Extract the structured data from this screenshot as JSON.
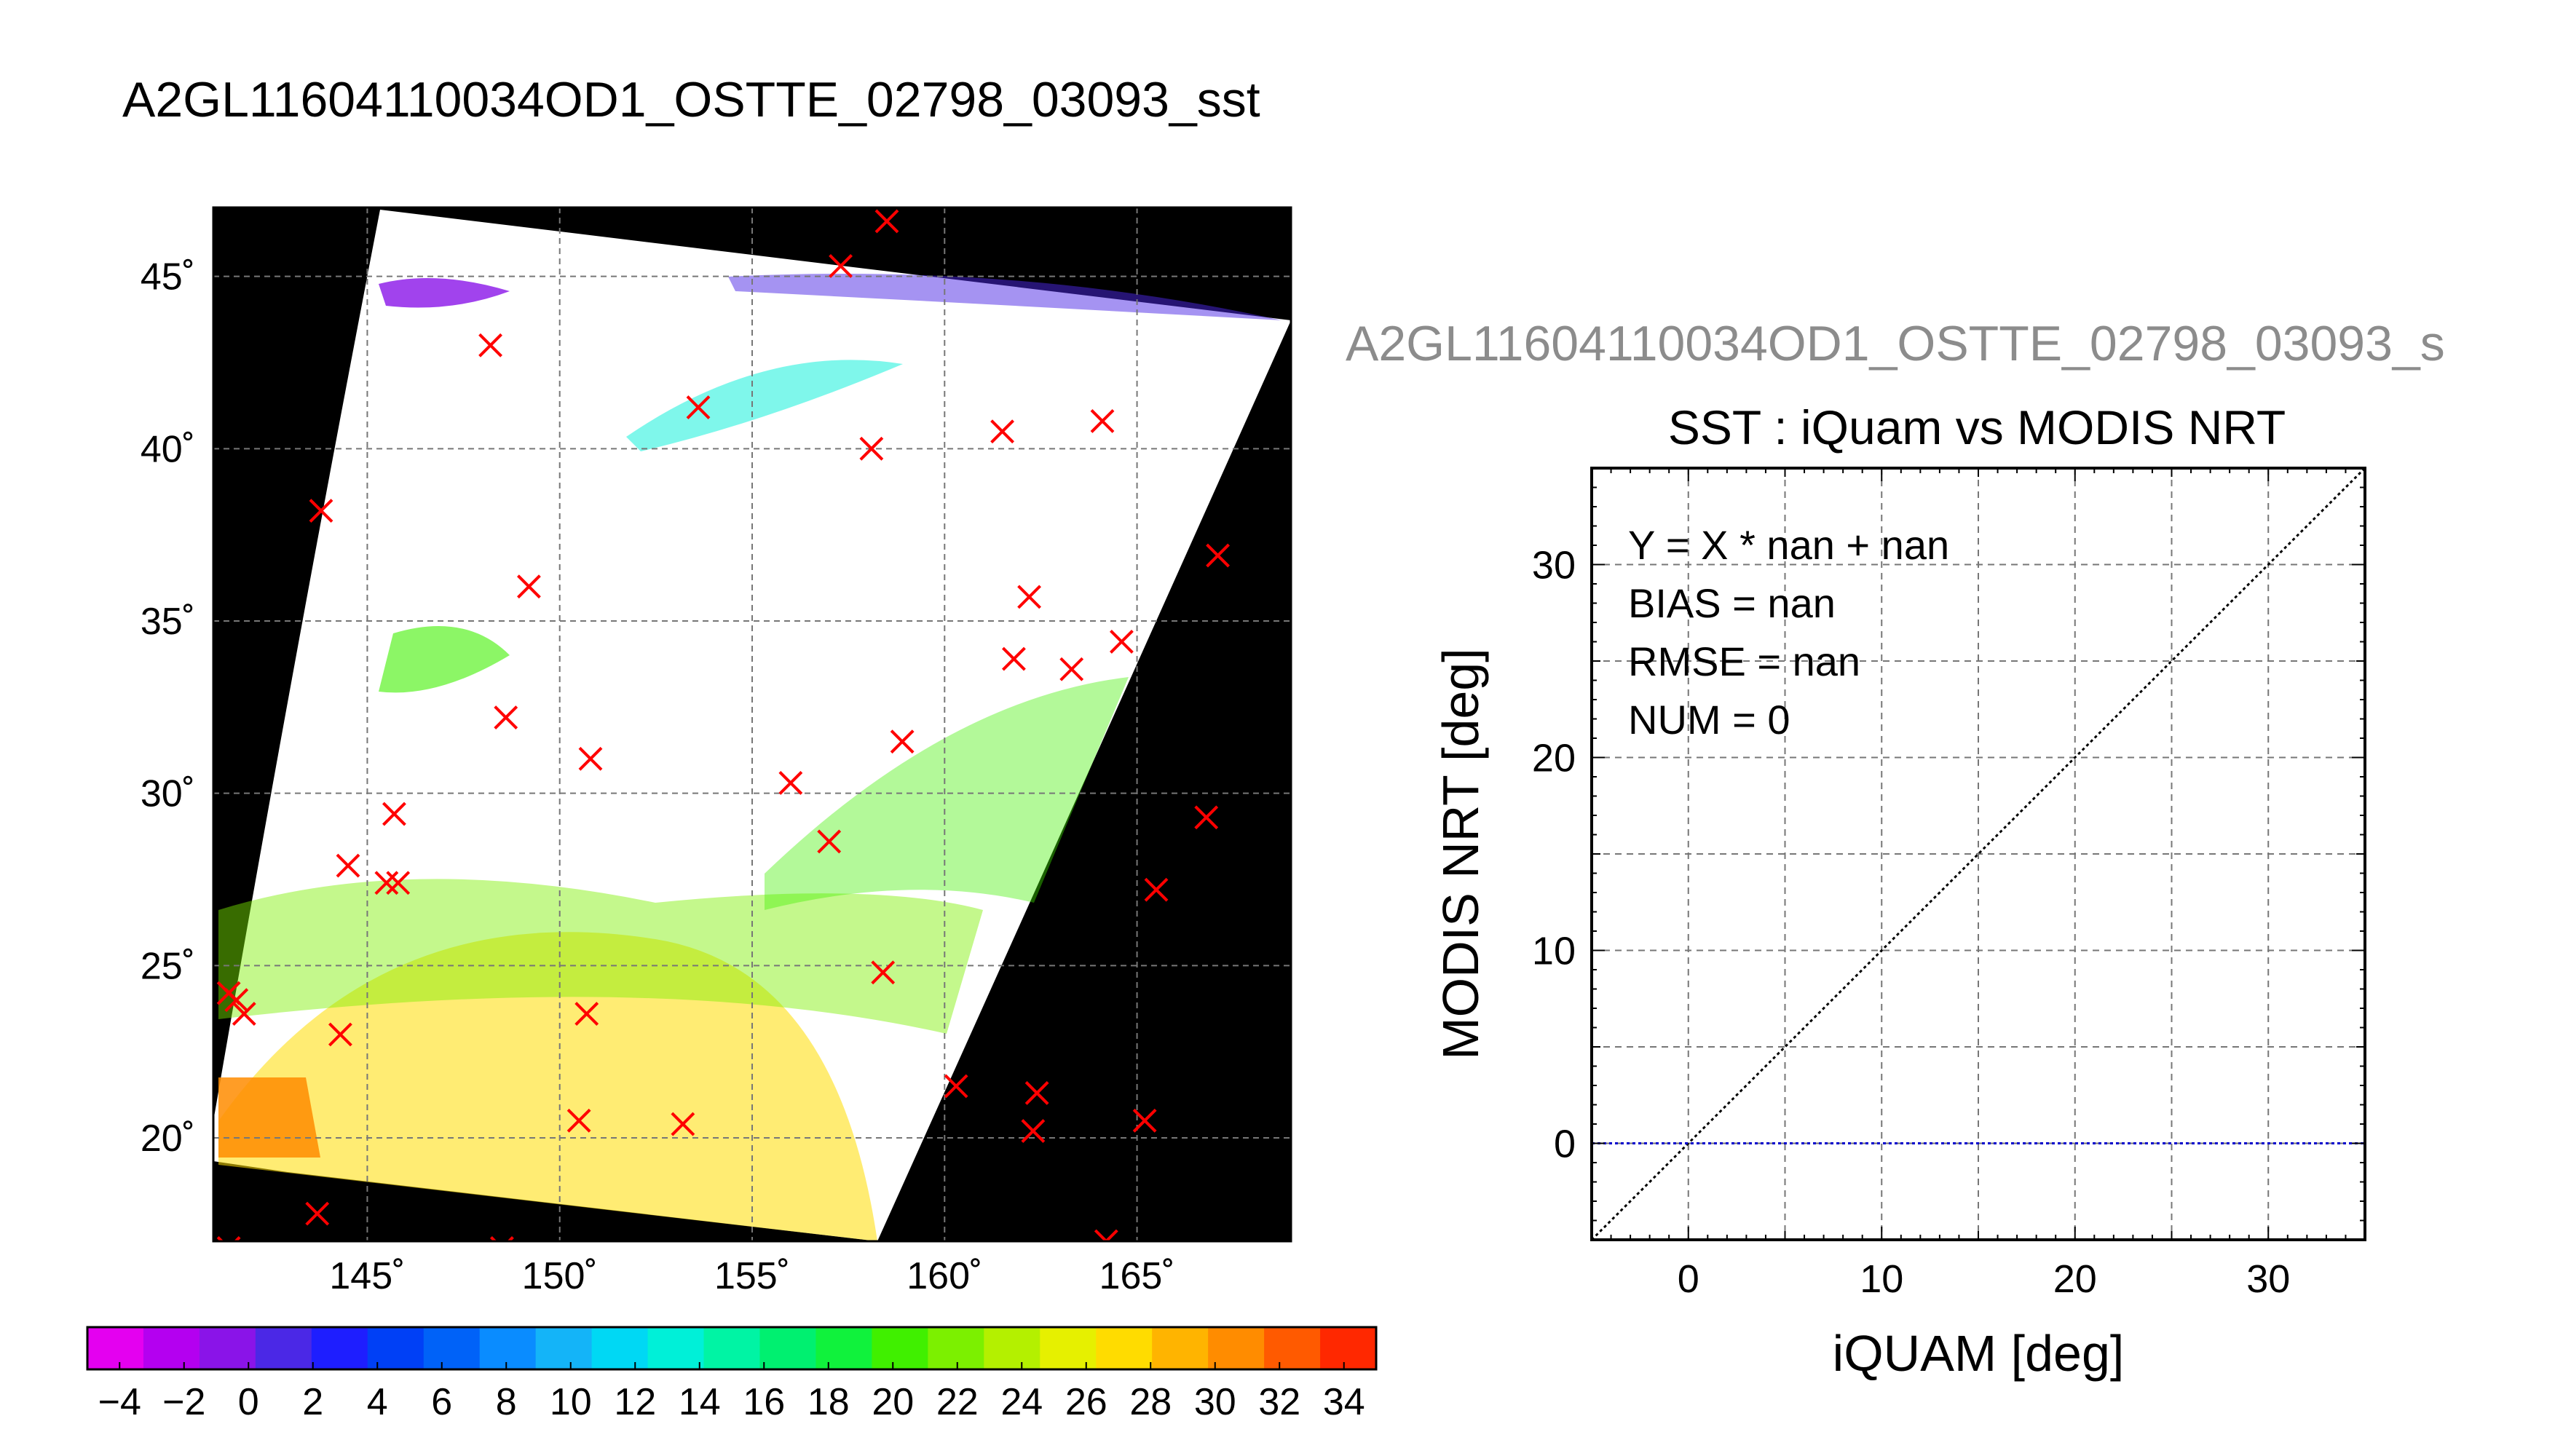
{
  "page_title": "A2GL11604110034OD1_OSTTE_02798_03093_sst",
  "chart_data": [
    {
      "type": "scatter",
      "title": "A2GL11604110034OD1_OSTTE_02798_03093_sst",
      "subtitle": "",
      "description_of_map": "Map of SST swath; longitude / latitude axes; red crosses mark iQuam matchup locations",
      "xlim": [
        141,
        169
      ],
      "ylim": [
        17,
        47
      ],
      "x_ticks": [
        145,
        150,
        155,
        160,
        165
      ],
      "x_tick_labels": [
        "145˚",
        "150˚",
        "155˚",
        "160˚",
        "165˚"
      ],
      "y_ticks": [
        20,
        25,
        30,
        35,
        40,
        45
      ],
      "y_tick_labels": [
        "20˚",
        "25˚",
        "30˚",
        "35˚",
        "40˚",
        "45˚"
      ],
      "grid": true,
      "colors": {
        "background": "#000000",
        "no_data": "#ffffff",
        "marker": "#ff0000"
      },
      "series": [
        {
          "marker": "x",
          "x": [
            158.5,
            157.3,
            148.2,
            153.6,
            158.1,
            161.5,
            164.1,
            143.8,
            167.1,
            149.2,
            162.2,
            161.8,
            163.3,
            164.6,
            148.6,
            150.8,
            158.9,
            156.0,
            157.0,
            166.8,
            144.5,
            145.5,
            145.8,
            145.7,
            165.5,
            141.4,
            141.6,
            141.8,
            144.3,
            150.7,
            158.4,
            160.3,
            162.4,
            162.3,
            165.2,
            150.5,
            153.2,
            143.7,
            141.4,
            148.5,
            164.2
          ],
          "y": [
            46.6,
            45.3,
            43.0,
            41.2,
            40.0,
            40.5,
            40.8,
            38.2,
            36.9,
            36.0,
            35.7,
            33.9,
            33.6,
            34.4,
            32.2,
            31.0,
            31.5,
            30.3,
            28.6,
            29.3,
            27.9,
            27.4,
            27.4,
            29.4,
            27.2,
            24.2,
            24.0,
            23.6,
            23.0,
            23.6,
            24.8,
            21.5,
            21.3,
            20.2,
            20.5,
            20.5,
            20.4,
            17.8,
            16.8,
            16.8,
            17.0
          ]
        }
      ]
    },
    {
      "type": "line",
      "overlay_title": "A2GL11604110034OD1_OSTTE_02798_03093_s",
      "title": "SST : iQuam vs MODIS NRT",
      "xlabel": "iQUAM [deg]",
      "ylabel": "MODIS NRT [deg]",
      "xlim": [
        -5,
        35
      ],
      "ylim": [
        -5,
        35
      ],
      "x_ticks": [
        0,
        10,
        20,
        30
      ],
      "y_ticks": [
        0,
        10,
        20,
        30
      ],
      "grid_step": 5,
      "grid": true,
      "annotations": [
        "Y = X * nan + nan",
        "BIAS = nan",
        "RMSE = nan",
        "NUM = 0"
      ],
      "series": [
        {
          "style": "dotted",
          "color": "#000000",
          "x": [
            -5,
            35
          ],
          "y": [
            -5,
            35
          ]
        },
        {
          "style": "dotted",
          "color": "#0000cc",
          "x": [
            -5,
            35
          ],
          "y": [
            0,
            0
          ]
        }
      ]
    }
  ],
  "colorbar": {
    "min": -5,
    "max": 35,
    "step": 2,
    "tick_labels": [
      "−4",
      "−2",
      "0",
      "2",
      "4",
      "6",
      "8",
      "10",
      "12",
      "14",
      "16",
      "18",
      "20",
      "22",
      "24",
      "26",
      "28",
      "30",
      "32",
      "34"
    ],
    "colors": [
      "#e400f0",
      "#b400f0",
      "#8a14e8",
      "#4b28e6",
      "#1e1eff",
      "#0040f6",
      "#0062f8",
      "#0a8cff",
      "#14b4f8",
      "#00d8f4",
      "#00f0d8",
      "#00f4a4",
      "#00f070",
      "#10f23c",
      "#40f000",
      "#7cf000",
      "#b4f000",
      "#e6f000",
      "#ffdc00",
      "#ffb400",
      "#ff8c00",
      "#ff5a00",
      "#ff2800"
    ]
  }
}
